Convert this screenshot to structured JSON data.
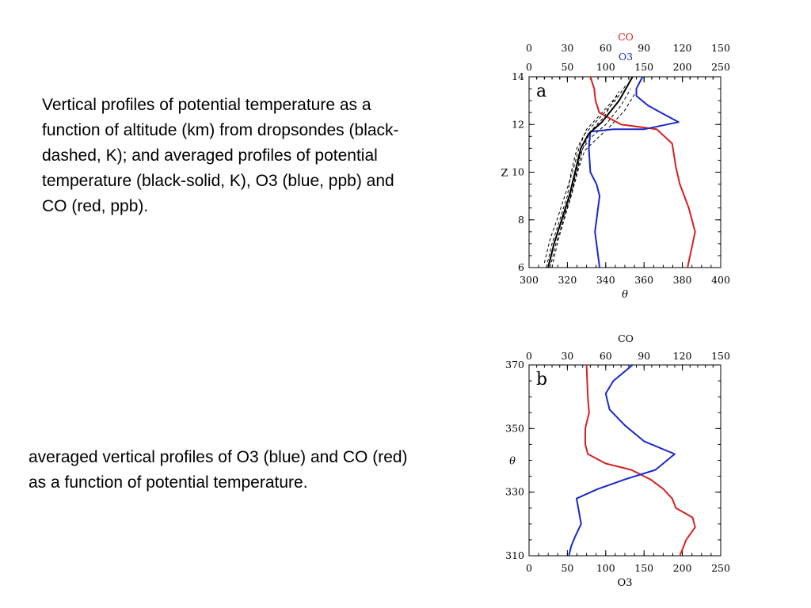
{
  "captions": {
    "a": "Vertical profiles of potential temperature as a function of altitude (km) from dropsondes (black-dashed, K); and averaged profiles of potential temperature (black-solid, K), O3 (blue, ppb) and CO (red, ppb).",
    "b": "averaged vertical profiles of O3 (blue) and CO (red) as a function of potential temperature."
  },
  "colors": {
    "co": "#d62020",
    "o3": "#1a28c8",
    "theta": "#000000",
    "frame": "#000000"
  },
  "chart_data": [
    {
      "type": "line",
      "panel_label": "a",
      "title": "",
      "xlabel": "θ",
      "ylabel": "Z",
      "xlim": [
        300,
        400
      ],
      "ylim": [
        6,
        14
      ],
      "x_ticks": [
        "300",
        "320",
        "340",
        "360",
        "380",
        "400"
      ],
      "y_ticks": [
        "6",
        "8",
        "10",
        "12",
        "14"
      ],
      "top_axes": [
        {
          "name": "CO",
          "color": "#d62020",
          "lim": [
            0,
            150
          ],
          "ticks": [
            "0",
            "30",
            "60",
            "90",
            "120",
            "150"
          ]
        },
        {
          "name": "O3",
          "color": "#1a28c8",
          "lim": [
            0,
            250
          ],
          "ticks": [
            "0",
            "50",
            "100",
            "150",
            "200",
            "250"
          ]
        }
      ],
      "series": [
        {
          "name": "CO",
          "axis": "top0",
          "color": "#d62020",
          "points": [
            [
              48,
              14
            ],
            [
              51,
              13.5
            ],
            [
              52,
              13
            ],
            [
              55,
              12.5
            ],
            [
              72,
              12
            ],
            [
              100,
              11.8
            ],
            [
              112,
              11.2
            ],
            [
              115,
              10.2
            ],
            [
              118,
              9.5
            ],
            [
              125,
              8.5
            ],
            [
              130,
              7.5
            ],
            [
              128,
              7
            ],
            [
              124,
              6
            ]
          ]
        },
        {
          "name": "O3",
          "axis": "top1",
          "color": "#1a28c8",
          "points": [
            [
              148,
              14
            ],
            [
              140,
              13.5
            ],
            [
              140,
              13.2
            ],
            [
              155,
              12.8
            ],
            [
              172,
              12.5
            ],
            [
              195,
              12.1
            ],
            [
              150,
              11.8
            ],
            [
              110,
              11.8
            ],
            [
              80,
              11.7
            ],
            [
              78,
              11
            ],
            [
              80,
              10
            ],
            [
              88,
              9.5
            ],
            [
              92,
              9
            ],
            [
              90,
              8.5
            ],
            [
              88,
              8
            ],
            [
              86,
              7.5
            ],
            [
              88,
              7
            ],
            [
              92,
              6
            ]
          ]
        },
        {
          "name": "theta (averaged)",
          "axis": "bottom",
          "color": "#000000",
          "points": [
            [
              310,
              6
            ],
            [
              313,
              7
            ],
            [
              317,
              8
            ],
            [
              321,
              9
            ],
            [
              324,
              10
            ],
            [
              327,
              11
            ],
            [
              331,
              11.6
            ],
            [
              338,
              12.1
            ],
            [
              347,
              13
            ],
            [
              354,
              14
            ]
          ]
        }
      ],
      "dropsondes": [
        [
          [
            309,
            6
          ],
          [
            312,
            7
          ],
          [
            316,
            8
          ],
          [
            320,
            9
          ],
          [
            322,
            10
          ],
          [
            325,
            11
          ],
          [
            329,
            11.6
          ],
          [
            336,
            12.2
          ],
          [
            345,
            13
          ],
          [
            351,
            13.7
          ]
        ],
        [
          [
            311,
            6
          ],
          [
            314,
            7
          ],
          [
            318,
            8
          ],
          [
            322,
            9
          ],
          [
            325,
            10
          ],
          [
            328,
            11
          ],
          [
            333,
            11.5
          ],
          [
            340,
            12
          ],
          [
            348,
            12.8
          ],
          [
            353,
            13.5
          ]
        ],
        [
          [
            308,
            6.2
          ],
          [
            311,
            7.2
          ],
          [
            315,
            8.1
          ],
          [
            319,
            9.1
          ],
          [
            323,
            10.1
          ],
          [
            326,
            11
          ],
          [
            330,
            11.8
          ],
          [
            337,
            12.4
          ],
          [
            346,
            13.2
          ]
        ],
        [
          [
            312,
            6
          ],
          [
            315,
            7.1
          ],
          [
            319,
            8.2
          ],
          [
            323,
            9.3
          ],
          [
            326,
            10.2
          ],
          [
            329,
            10.9
          ],
          [
            334,
            11.3
          ],
          [
            342,
            11.9
          ],
          [
            350,
            12.6
          ],
          [
            356,
            13.4
          ]
        ],
        [
          [
            310,
            6.1
          ],
          [
            313,
            7
          ],
          [
            317,
            7.9
          ],
          [
            321,
            8.8
          ],
          [
            324,
            9.8
          ],
          [
            327,
            10.8
          ],
          [
            332,
            11.7
          ],
          [
            339,
            12.3
          ],
          [
            347,
            13.4
          ]
        ]
      ]
    },
    {
      "type": "line",
      "panel_label": "b",
      "title": "",
      "xlabel": "O3",
      "ylabel": "θ",
      "xlim": [
        0,
        250
      ],
      "ylim": [
        310,
        370
      ],
      "x_ticks": [
        "0",
        "50",
        "100",
        "150",
        "200",
        "250"
      ],
      "y_ticks": [
        "310",
        "330",
        "350",
        "370"
      ],
      "top_axes": [
        {
          "name": "CO",
          "color": "#000000",
          "lim": [
            0,
            150
          ],
          "ticks": [
            "0",
            "30",
            "60",
            "90",
            "120",
            "150"
          ]
        }
      ],
      "series": [
        {
          "name": "CO",
          "axis": "top0",
          "color": "#d62020",
          "points": [
            [
              45,
              370
            ],
            [
              46,
              360
            ],
            [
              47,
              355
            ],
            [
              44,
              350
            ],
            [
              44,
              345
            ],
            [
              46,
              342
            ],
            [
              60,
              339
            ],
            [
              80,
              337
            ],
            [
              95,
              334
            ],
            [
              105,
              331
            ],
            [
              112,
              328
            ],
            [
              115,
              325
            ],
            [
              128,
              322
            ],
            [
              130,
              319
            ],
            [
              123,
              315
            ],
            [
              118,
              310
            ]
          ]
        },
        {
          "name": "O3",
          "axis": "bottom",
          "color": "#1a28c8",
          "points": [
            [
              135,
              370
            ],
            [
              110,
              365
            ],
            [
              100,
              361
            ],
            [
              105,
              356
            ],
            [
              125,
              351
            ],
            [
              150,
              346
            ],
            [
              190,
              342
            ],
            [
              165,
              337
            ],
            [
              125,
              334
            ],
            [
              90,
              331
            ],
            [
              62,
              328
            ],
            [
              65,
              324
            ],
            [
              68,
              320
            ],
            [
              60,
              316
            ],
            [
              55,
              313
            ],
            [
              52,
              310
            ]
          ]
        }
      ]
    }
  ]
}
